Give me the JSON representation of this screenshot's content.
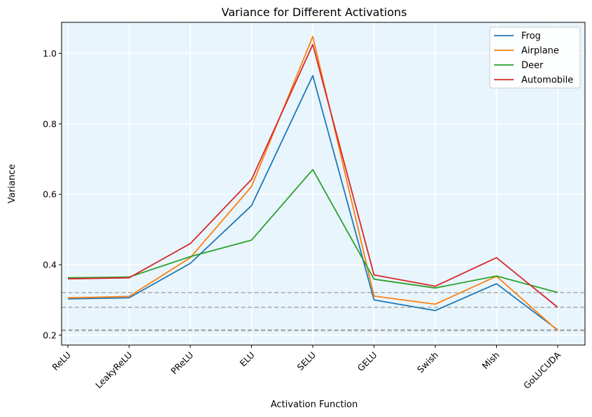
{
  "chart_data": {
    "type": "line",
    "title": "Variance for Different Activations",
    "xlabel": "Activation Function",
    "ylabel": "Variance",
    "categories": [
      "ReLU",
      "LeakyReLU",
      "PReLU",
      "ELU",
      "SELU",
      "GELU",
      "Swish",
      "Mish",
      "GoLUCUDA"
    ],
    "ylim": [
      0.172,
      1.088
    ],
    "yticks": [
      0.2,
      0.4,
      0.6,
      0.8,
      1.0
    ],
    "ytick_labels": [
      "0.2",
      "0.4",
      "0.6",
      "0.8",
      "1.0"
    ],
    "grid": true,
    "background": "#e8f5fc",
    "legend_position": "top-right",
    "hlines": [
      {
        "y": 0.321,
        "color": "#aaaaaa",
        "style": "dashed"
      },
      {
        "y": 0.279,
        "color": "#aaaaaa",
        "style": "dashed"
      },
      {
        "y": 0.215,
        "color": "#aaaaaa",
        "style": "dashed"
      },
      {
        "y": 0.213,
        "color": "#aaaaaa",
        "style": "dashed"
      }
    ],
    "series": [
      {
        "name": "Frog",
        "color": "#1f77b4",
        "values": [
          0.303,
          0.306,
          0.404,
          0.568,
          0.937,
          0.3,
          0.27,
          0.346,
          0.215
        ]
      },
      {
        "name": "Airplane",
        "color": "#ff7f0e",
        "values": [
          0.306,
          0.31,
          0.42,
          0.622,
          1.048,
          0.311,
          0.288,
          0.367,
          0.213
        ]
      },
      {
        "name": "Deer",
        "color": "#2ca02c",
        "values": [
          0.363,
          0.365,
          0.423,
          0.47,
          0.67,
          0.359,
          0.334,
          0.368,
          0.321
        ]
      },
      {
        "name": "Automobile",
        "color": "#d62728",
        "values": [
          0.36,
          0.363,
          0.46,
          0.642,
          1.025,
          0.371,
          0.339,
          0.42,
          0.279
        ]
      }
    ]
  }
}
